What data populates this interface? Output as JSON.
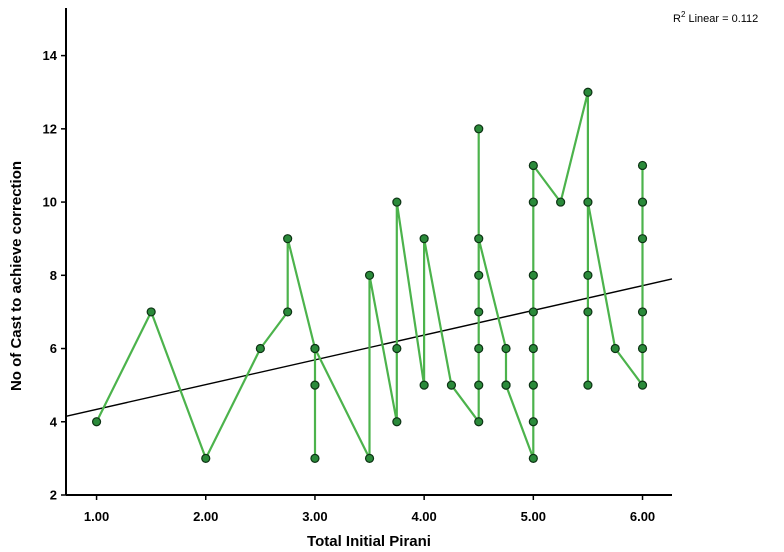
{
  "chart_data": {
    "type": "scatter",
    "xlabel": "Total Initial Pirani",
    "ylabel": "No of Cast to achieve correction",
    "xlim": [
      0.72,
      6.27
    ],
    "ylim": [
      2,
      15.3
    ],
    "xticks": [
      1,
      2,
      3,
      4,
      5,
      6
    ],
    "xtick_labels": [
      "1.00",
      "2.00",
      "3.00",
      "4.00",
      "5.00",
      "6.00"
    ],
    "yticks": [
      2,
      4,
      6,
      8,
      10,
      12,
      14
    ],
    "ytick_labels": [
      "2",
      "4",
      "6",
      "8",
      "10",
      "12",
      "14"
    ],
    "grid": false,
    "r2_label": {
      "prefix": "R",
      "sup": "2",
      "text": " Linear = 0.112"
    },
    "colors": {
      "line": "#4cb34c",
      "marker_fill": "#2a8a3a",
      "marker_edge": "#0d3314",
      "fit": "#000000"
    },
    "points": [
      [
        1,
        4
      ],
      [
        1.5,
        7
      ],
      [
        2,
        3
      ],
      [
        2.5,
        6
      ],
      [
        2.75,
        7
      ],
      [
        2.75,
        9
      ],
      [
        3,
        6
      ],
      [
        3,
        3
      ],
      [
        3,
        5
      ],
      [
        3,
        6
      ],
      [
        3.5,
        3
      ],
      [
        3.5,
        8
      ],
      [
        3.75,
        4
      ],
      [
        3.75,
        6
      ],
      [
        3.75,
        10
      ],
      [
        4,
        5
      ],
      [
        4,
        9
      ],
      [
        4.25,
        5
      ],
      [
        4.5,
        4
      ],
      [
        4.5,
        12
      ],
      [
        4.5,
        5
      ],
      [
        4.5,
        6
      ],
      [
        4.5,
        7
      ],
      [
        4.5,
        8
      ],
      [
        4.5,
        9
      ],
      [
        4.75,
        6
      ],
      [
        4.75,
        5
      ],
      [
        4.75,
        5
      ],
      [
        5,
        3
      ],
      [
        5,
        4
      ],
      [
        5,
        5
      ],
      [
        5,
        6
      ],
      [
        5,
        7
      ],
      [
        5,
        8
      ],
      [
        5,
        10
      ],
      [
        5,
        11
      ],
      [
        5.25,
        10
      ],
      [
        5.5,
        13
      ],
      [
        5.5,
        5
      ],
      [
        5.5,
        7
      ],
      [
        5.5,
        8
      ],
      [
        5.5,
        10
      ],
      [
        5.75,
        6
      ],
      [
        6,
        5
      ],
      [
        6,
        6
      ],
      [
        6,
        7
      ],
      [
        6,
        9
      ],
      [
        6,
        10
      ],
      [
        6,
        11
      ]
    ],
    "fit_line": {
      "x": [
        0.72,
        6.27
      ],
      "y": [
        4.15,
        7.9
      ]
    }
  }
}
